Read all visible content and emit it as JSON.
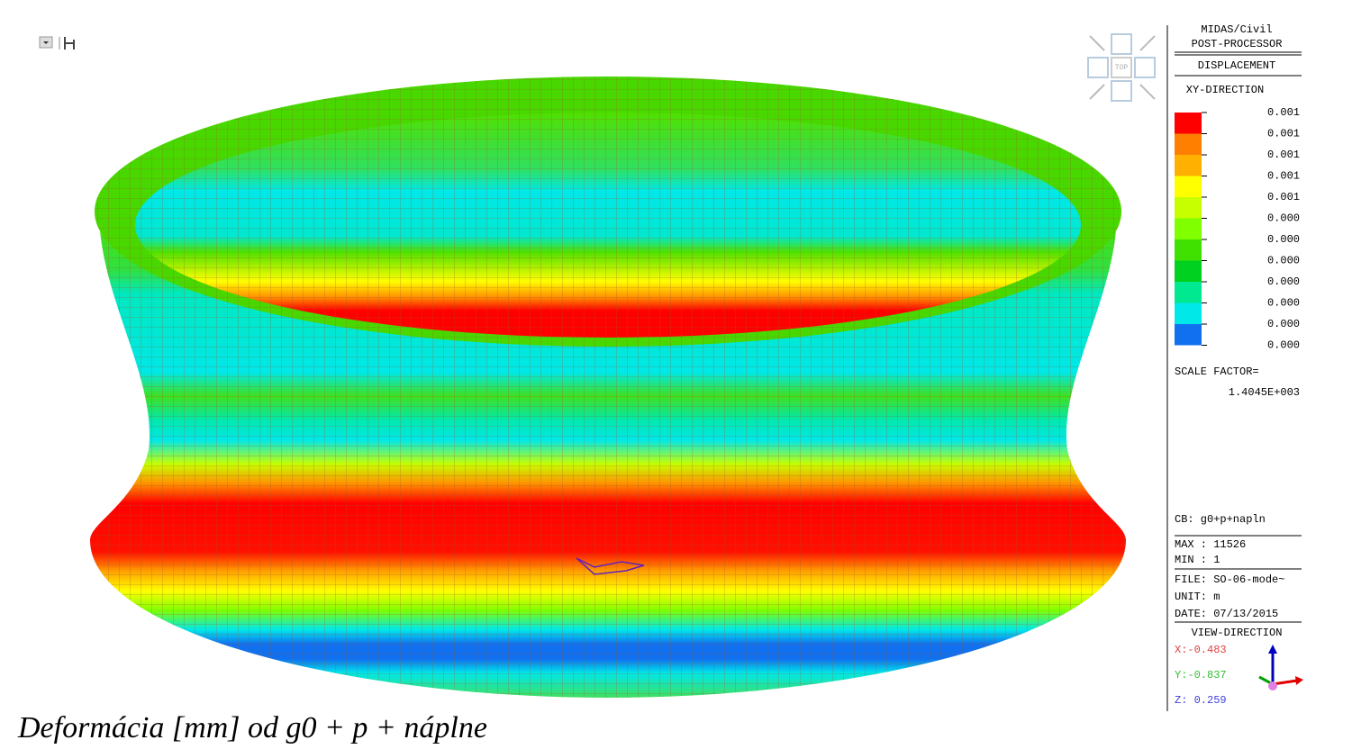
{
  "panel": {
    "product": "MIDAS/Civil",
    "module": "POST-PROCESSOR",
    "result": "DISPLACEMENT",
    "component": "XY-DIRECTION",
    "legend": {
      "labels": [
        "0.001",
        "0.001",
        "0.001",
        "0.001",
        "0.001",
        "0.000",
        "0.000",
        "0.000",
        "0.000",
        "0.000",
        "0.000",
        "0.000"
      ],
      "colors": [
        "#ff0000",
        "#ff7f00",
        "#ffb000",
        "#ffff00",
        "#c8ff00",
        "#80ff00",
        "#40e000",
        "#00d020",
        "#00e890",
        "#00e8e8",
        "#1070f0"
      ]
    },
    "scale_factor_label": "SCALE FACTOR=",
    "scale_factor": "1.4045E+003",
    "combination": "CB: g0+p+napln",
    "max": "MAX : 11526",
    "min": "MIN : 1",
    "file": "FILE: SO-06-mode~",
    "unit": "UNIT: m",
    "date": "DATE: 07/13/2015",
    "view_direction": {
      "title": "VIEW-DIRECTION",
      "x": "X:-0.483",
      "y": "Y:-0.837",
      "z": "Z: 0.259"
    }
  },
  "view_cube": {
    "label": "TOP"
  },
  "caption": "Deformácia [mm] od g0 + p + náplne"
}
